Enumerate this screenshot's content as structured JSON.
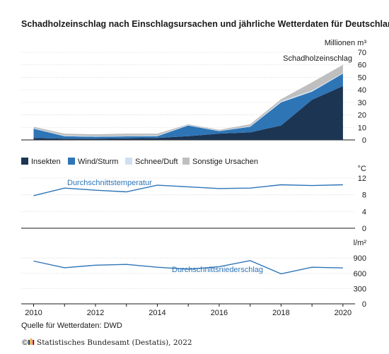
{
  "title": "Schadholzeinschlag nach Einschlagsursachen und jährliche Wetterdaten für Deutschland",
  "source": "Quelle für Wetterdaten: DWD",
  "copyright": "Statistisches Bundesamt (Destatis), 2022",
  "copyright_symbol": "©",
  "colors": {
    "insekten": "#1c3553",
    "wind": "#2e75b6",
    "schnee": "#cfe0f1",
    "sonstige": "#bfbfbf",
    "line": "#2e75b6",
    "axis": "#1a1a1a"
  },
  "chart_data": [
    {
      "type": "area",
      "stacked": true,
      "unit": "Millionen m³",
      "annotation": "Schadholzeinschlag",
      "x": [
        2010,
        2011,
        2012,
        2013,
        2014,
        2015,
        2016,
        2017,
        2018,
        2019,
        2020
      ],
      "ylim": [
        0,
        70
      ],
      "yticks": [
        0,
        10,
        20,
        30,
        40,
        50,
        60,
        70
      ],
      "grid": true,
      "legend_position": "bottom",
      "series": [
        {
          "name": "Insekten",
          "color_key": "insekten",
          "values": [
            1.5,
            1.0,
            1.0,
            1.3,
            1.5,
            3.0,
            5.0,
            6.0,
            11.5,
            32.0,
            43.0
          ]
        },
        {
          "name": "Wind/Sturm",
          "color_key": "wind",
          "values": [
            7.5,
            2.0,
            1.5,
            1.5,
            1.5,
            8.5,
            2.0,
            4.5,
            18.5,
            6.5,
            10.0
          ]
        },
        {
          "name": "Schnee/Duft",
          "color_key": "schnee",
          "values": [
            0.5,
            0.5,
            0.5,
            0.5,
            0.5,
            0.5,
            0.3,
            0.5,
            1.0,
            1.0,
            0.5
          ]
        },
        {
          "name": "Sonstige Ursachen",
          "color_key": "sonstige",
          "values": [
            1.0,
            1.5,
            1.5,
            1.7,
            1.5,
            0.5,
            0.7,
            1.5,
            1.5,
            6.5,
            6.5
          ]
        }
      ]
    },
    {
      "type": "line",
      "unit": "°C",
      "annotation": "Durchschnittstemperatur",
      "x": [
        2010,
        2011,
        2012,
        2013,
        2014,
        2015,
        2016,
        2017,
        2018,
        2019,
        2020
      ],
      "values": [
        7.8,
        9.6,
        9.1,
        8.7,
        10.3,
        9.9,
        9.5,
        9.6,
        10.4,
        10.2,
        10.4
      ],
      "ylim": [
        0,
        12
      ],
      "yticks": [
        0,
        4,
        8,
        12
      ],
      "grid": true
    },
    {
      "type": "line",
      "unit": "l/m²",
      "annotation": "Durchschnittsniederschlag",
      "x": [
        2010,
        2011,
        2012,
        2013,
        2014,
        2015,
        2016,
        2017,
        2018,
        2019,
        2020
      ],
      "values": [
        840,
        710,
        760,
        775,
        720,
        680,
        730,
        850,
        590,
        720,
        705
      ],
      "ylim": [
        0,
        1000
      ],
      "yticks": [
        0,
        300,
        600,
        900
      ],
      "grid": true
    }
  ],
  "x_axis": {
    "ticks": [
      2010,
      2012,
      2014,
      2016,
      2018,
      2020
    ],
    "range": [
      2009.6,
      2020.3
    ]
  }
}
